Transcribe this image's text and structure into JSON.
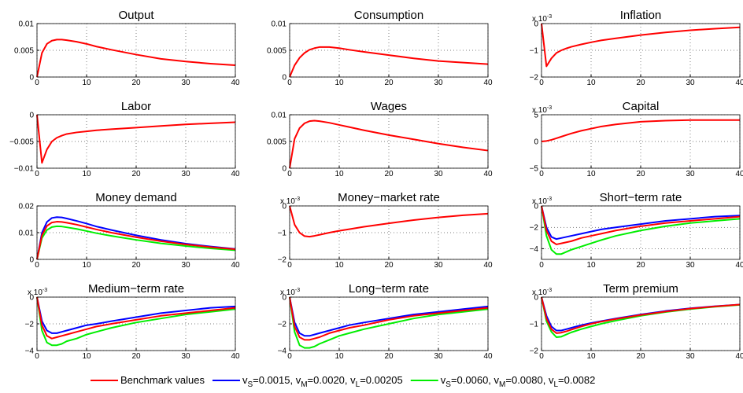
{
  "chart_data": [
    {
      "type": "line",
      "title": "Output",
      "x": [
        0,
        1,
        2,
        3,
        4,
        5,
        6,
        8,
        10,
        12,
        15,
        20,
        25,
        30,
        35,
        40
      ],
      "xlim": [
        0,
        40
      ],
      "xticks": [
        0,
        10,
        20,
        30,
        40
      ],
      "ylim": [
        0,
        0.01
      ],
      "yticks": [
        0,
        0.005,
        0.01
      ],
      "grid": true,
      "series": [
        {
          "color": "#ff0000",
          "values": [
            0,
            0.0045,
            0.0062,
            0.0068,
            0.007,
            0.007,
            0.0069,
            0.0066,
            0.0062,
            0.0057,
            0.0051,
            0.0042,
            0.0034,
            0.0029,
            0.0025,
            0.0022
          ]
        }
      ]
    },
    {
      "type": "line",
      "title": "Consumption",
      "x": [
        0,
        1,
        2,
        3,
        4,
        5,
        6,
        8,
        10,
        12,
        15,
        20,
        25,
        30,
        35,
        40
      ],
      "xlim": [
        0,
        40
      ],
      "xticks": [
        0,
        10,
        20,
        30,
        40
      ],
      "ylim": [
        0,
        0.01
      ],
      "yticks": [
        0,
        0.005,
        0.01
      ],
      "grid": true,
      "series": [
        {
          "color": "#ff0000",
          "values": [
            0,
            0.0022,
            0.0036,
            0.0045,
            0.0051,
            0.0054,
            0.0056,
            0.0056,
            0.0054,
            0.0051,
            0.0047,
            0.0041,
            0.0035,
            0.003,
            0.0027,
            0.0024
          ]
        }
      ]
    },
    {
      "type": "line",
      "title": "Inflation",
      "scale_label": {
        "base": "x 10",
        "exponent": "-3"
      },
      "x": [
        0,
        1,
        2,
        3,
        4,
        5,
        6,
        8,
        10,
        12,
        15,
        20,
        25,
        30,
        35,
        40
      ],
      "xlim": [
        0,
        40
      ],
      "xticks": [
        0,
        10,
        20,
        30,
        40
      ],
      "ylim": [
        -0.002,
        0
      ],
      "yticks": [
        {
          "value": -0.002,
          "label": "−2"
        },
        {
          "value": -0.001,
          "label": "−1"
        },
        0
      ],
      "grid": true,
      "series": [
        {
          "color": "#ff0000",
          "values": [
            0,
            -0.0016,
            -0.0013,
            -0.0011,
            -0.001,
            -0.00093,
            -0.00087,
            -0.00078,
            -0.0007,
            -0.00063,
            -0.00055,
            -0.00043,
            -0.00033,
            -0.00025,
            -0.00019,
            -0.00014
          ]
        }
      ]
    },
    {
      "type": "line",
      "title": "Labor",
      "x": [
        0,
        1,
        2,
        3,
        4,
        5,
        6,
        8,
        10,
        12,
        15,
        20,
        25,
        30,
        35,
        40
      ],
      "xlim": [
        0,
        40
      ],
      "xticks": [
        0,
        10,
        20,
        30,
        40
      ],
      "ylim": [
        -0.01,
        0
      ],
      "yticks": [
        {
          "value": -0.01,
          "label": "−0.01"
        },
        {
          "value": -0.005,
          "label": "−0.005"
        },
        0
      ],
      "grid": true,
      "series": [
        {
          "color": "#ff0000",
          "values": [
            0,
            -0.009,
            -0.0065,
            -0.005,
            -0.0043,
            -0.0039,
            -0.0036,
            -0.0033,
            -0.0031,
            -0.0029,
            -0.0027,
            -0.0024,
            -0.0021,
            -0.0018,
            -0.0016,
            -0.0014
          ]
        }
      ]
    },
    {
      "type": "line",
      "title": "Wages",
      "x": [
        0,
        1,
        2,
        3,
        4,
        5,
        6,
        8,
        10,
        12,
        15,
        20,
        25,
        30,
        35,
        40
      ],
      "xlim": [
        0,
        40
      ],
      "xticks": [
        0,
        10,
        20,
        30,
        40
      ],
      "ylim": [
        0,
        0.01
      ],
      "yticks": [
        0,
        0.005,
        0.01
      ],
      "grid": true,
      "series": [
        {
          "color": "#ff0000",
          "values": [
            0,
            0.0055,
            0.0075,
            0.0084,
            0.0088,
            0.0089,
            0.0088,
            0.0085,
            0.0081,
            0.0077,
            0.0071,
            0.0062,
            0.0054,
            0.0046,
            0.0039,
            0.0033
          ]
        }
      ]
    },
    {
      "type": "line",
      "title": "Capital",
      "scale_label": {
        "base": "x 10",
        "exponent": "-3"
      },
      "x": [
        0,
        1,
        2,
        3,
        4,
        5,
        6,
        8,
        10,
        12,
        15,
        20,
        25,
        30,
        35,
        40
      ],
      "xlim": [
        0,
        40
      ],
      "xticks": [
        0,
        10,
        20,
        30,
        40
      ],
      "ylim": [
        -0.005,
        0.005
      ],
      "yticks": [
        {
          "value": -0.005,
          "label": "−5"
        },
        0,
        {
          "value": 0.005,
          "label": "5"
        }
      ],
      "grid": true,
      "series": [
        {
          "color": "#ff0000",
          "values": [
            0,
            0.0001,
            0.0003,
            0.0006,
            0.0009,
            0.0012,
            0.0015,
            0.002,
            0.0024,
            0.0028,
            0.0032,
            0.0037,
            0.0039,
            0.004,
            0.004,
            0.004
          ]
        }
      ]
    },
    {
      "type": "line",
      "title": "Money demand",
      "x": [
        0,
        1,
        2,
        3,
        4,
        5,
        6,
        8,
        10,
        12,
        15,
        20,
        25,
        30,
        35,
        40
      ],
      "xlim": [
        0,
        40
      ],
      "xticks": [
        0,
        10,
        20,
        30,
        40
      ],
      "ylim": [
        0,
        0.02
      ],
      "yticks": [
        0,
        0.01,
        0.02
      ],
      "grid": true,
      "series": [
        {
          "color": "#0000ff",
          "values": [
            0,
            0.01,
            0.014,
            0.0155,
            0.0158,
            0.0157,
            0.0153,
            0.0144,
            0.0134,
            0.0123,
            0.011,
            0.009,
            0.0073,
            0.0059,
            0.0048,
            0.0039
          ]
        },
        {
          "color": "#00ee00",
          "values": [
            0,
            0.008,
            0.011,
            0.0121,
            0.0124,
            0.0123,
            0.012,
            0.0114,
            0.0106,
            0.0098,
            0.0088,
            0.0073,
            0.006,
            0.005,
            0.0041,
            0.0034
          ]
        },
        {
          "color": "#ff0000",
          "values": [
            0,
            0.009,
            0.0125,
            0.0138,
            0.0141,
            0.014,
            0.0137,
            0.013,
            0.0121,
            0.0112,
            0.01,
            0.0083,
            0.0068,
            0.0056,
            0.0046,
            0.0038
          ]
        }
      ]
    },
    {
      "type": "line",
      "title": "Money−market rate",
      "scale_label": {
        "base": "x 10",
        "exponent": "-3"
      },
      "x": [
        0,
        1,
        2,
        3,
        4,
        5,
        6,
        8,
        10,
        12,
        15,
        20,
        25,
        30,
        35,
        40
      ],
      "xlim": [
        0,
        40
      ],
      "xticks": [
        0,
        10,
        20,
        30,
        40
      ],
      "ylim": [
        -0.002,
        0
      ],
      "yticks": [
        {
          "value": -0.002,
          "label": "−2"
        },
        {
          "value": -0.001,
          "label": "−1"
        },
        0
      ],
      "grid": true,
      "series": [
        {
          "color": "#ff0000",
          "values": [
            0,
            -0.0007,
            -0.001,
            -0.00113,
            -0.00115,
            -0.00112,
            -0.00108,
            -0.001,
            -0.00093,
            -0.00087,
            -0.00078,
            -0.00065,
            -0.00053,
            -0.00043,
            -0.00035,
            -0.00029
          ]
        }
      ]
    },
    {
      "type": "line",
      "title": "Short−term rate",
      "scale_label": {
        "base": "x 10",
        "exponent": "-3"
      },
      "x": [
        0,
        1,
        2,
        3,
        4,
        5,
        6,
        8,
        10,
        12,
        15,
        20,
        25,
        30,
        35,
        40
      ],
      "xlim": [
        0,
        40
      ],
      "xticks": [
        0,
        10,
        20,
        30,
        40
      ],
      "ylim": [
        -0.005,
        0
      ],
      "yticks": [
        {
          "value": -0.004,
          "label": "−4"
        },
        {
          "value": -0.002,
          "label": "−2"
        },
        0
      ],
      "grid": true,
      "series": [
        {
          "color": "#0000ff",
          "values": [
            0,
            -0.002,
            -0.0029,
            -0.0031,
            -0.003,
            -0.0029,
            -0.0028,
            -0.0026,
            -0.0024,
            -0.0022,
            -0.002,
            -0.0017,
            -0.0014,
            -0.0012,
            -0.001,
            -0.0009
          ]
        },
        {
          "color": "#00ee00",
          "values": [
            0,
            -0.0028,
            -0.0041,
            -0.0045,
            -0.0045,
            -0.0043,
            -0.0041,
            -0.0038,
            -0.0035,
            -0.0032,
            -0.0028,
            -0.0023,
            -0.0019,
            -0.0016,
            -0.0014,
            -0.0012
          ]
        },
        {
          "color": "#ff0000",
          "values": [
            0,
            -0.0023,
            -0.0033,
            -0.0036,
            -0.0035,
            -0.0034,
            -0.0033,
            -0.003,
            -0.0028,
            -0.0026,
            -0.0023,
            -0.0019,
            -0.0016,
            -0.0014,
            -0.0012,
            -0.001
          ]
        }
      ]
    },
    {
      "type": "line",
      "title": "Medium−term rate",
      "scale_label": {
        "base": "x 10",
        "exponent": "-3"
      },
      "x": [
        0,
        1,
        2,
        3,
        4,
        5,
        6,
        8,
        10,
        12,
        15,
        20,
        25,
        30,
        35,
        40
      ],
      "xlim": [
        0,
        40
      ],
      "xticks": [
        0,
        10,
        20,
        30,
        40
      ],
      "ylim": [
        -0.004,
        0
      ],
      "yticks": [
        {
          "value": -0.004,
          "label": "−4"
        },
        {
          "value": -0.002,
          "label": "−2"
        },
        0
      ],
      "grid": true,
      "series": [
        {
          "color": "#0000ff",
          "values": [
            0,
            -0.0018,
            -0.0025,
            -0.0027,
            -0.0027,
            -0.0026,
            -0.0025,
            -0.0023,
            -0.0021,
            -0.002,
            -0.0018,
            -0.0015,
            -0.0012,
            -0.001,
            -0.0008,
            -0.0007
          ]
        },
        {
          "color": "#00ee00",
          "values": [
            0,
            -0.0025,
            -0.0034,
            -0.0036,
            -0.0036,
            -0.0035,
            -0.0033,
            -0.0031,
            -0.0028,
            -0.0026,
            -0.0023,
            -0.0019,
            -0.0016,
            -0.0013,
            -0.0011,
            -0.0009
          ]
        },
        {
          "color": "#ff0000",
          "values": [
            0,
            -0.0021,
            -0.0029,
            -0.0031,
            -0.003,
            -0.0029,
            -0.0028,
            -0.0026,
            -0.0024,
            -0.0022,
            -0.002,
            -0.0017,
            -0.0014,
            -0.0012,
            -0.001,
            -0.0008
          ]
        }
      ]
    },
    {
      "type": "line",
      "title": "Long−term rate",
      "scale_label": {
        "base": "x 10",
        "exponent": "-3"
      },
      "x": [
        0,
        1,
        2,
        3,
        4,
        5,
        6,
        8,
        10,
        12,
        15,
        20,
        25,
        30,
        35,
        40
      ],
      "xlim": [
        0,
        40
      ],
      "xticks": [
        0,
        10,
        20,
        30,
        40
      ],
      "ylim": [
        -0.004,
        0
      ],
      "yticks": [
        {
          "value": -0.004,
          "label": "−4"
        },
        {
          "value": -0.002,
          "label": "−2"
        },
        0
      ],
      "grid": true,
      "series": [
        {
          "color": "#0000ff",
          "values": [
            0,
            -0.0019,
            -0.0027,
            -0.0029,
            -0.0029,
            -0.0028,
            -0.0027,
            -0.0025,
            -0.0023,
            -0.0021,
            -0.0019,
            -0.0016,
            -0.0013,
            -0.0011,
            -0.0009,
            -0.0007
          ]
        },
        {
          "color": "#00ee00",
          "values": [
            0,
            -0.0026,
            -0.0036,
            -0.0038,
            -0.0038,
            -0.0037,
            -0.0035,
            -0.0032,
            -0.0029,
            -0.0027,
            -0.0024,
            -0.002,
            -0.0016,
            -0.0013,
            -0.0011,
            -0.0009
          ]
        },
        {
          "color": "#ff0000",
          "values": [
            0,
            -0.0022,
            -0.003,
            -0.0032,
            -0.0032,
            -0.0031,
            -0.003,
            -0.0027,
            -0.0025,
            -0.0023,
            -0.0021,
            -0.0017,
            -0.0014,
            -0.0012,
            -0.001,
            -0.0008
          ]
        }
      ]
    },
    {
      "type": "line",
      "title": "Term premium",
      "x": [
        0,
        1,
        2,
        3,
        4,
        5,
        6,
        8,
        10,
        12,
        15,
        20,
        25,
        30,
        35,
        40
      ],
      "scale_label": {
        "base": "x 10",
        "exponent": "-3"
      },
      "xlim": [
        0,
        40
      ],
      "xticks": [
        0,
        10,
        20,
        30,
        40
      ],
      "ylim": [
        -0.002,
        0
      ],
      "yticks": [
        {
          "value": -0.002,
          "label": "−2"
        },
        {
          "value": -0.001,
          "label": "−1"
        },
        0
      ],
      "grid": true,
      "series": [
        {
          "color": "#0000ff",
          "values": [
            0,
            -0.0007,
            -0.0011,
            -0.00125,
            -0.00125,
            -0.0012,
            -0.00115,
            -0.00105,
            -0.00097,
            -0.0009,
            -0.0008,
            -0.00065,
            -0.00052,
            -0.00042,
            -0.00034,
            -0.00028
          ]
        },
        {
          "color": "#00ee00",
          "values": [
            0,
            -0.0009,
            -0.0013,
            -0.0015,
            -0.00148,
            -0.0014,
            -0.00132,
            -0.0012,
            -0.0011,
            -0.001,
            -0.00088,
            -0.0007,
            -0.00056,
            -0.00045,
            -0.00036,
            -0.00029
          ]
        },
        {
          "color": "#ff0000",
          "values": [
            0,
            -0.0008,
            -0.0012,
            -0.00135,
            -0.00133,
            -0.00128,
            -0.00122,
            -0.0011,
            -0.001,
            -0.00092,
            -0.00082,
            -0.00067,
            -0.00054,
            -0.00043,
            -0.00035,
            -0.00028
          ]
        }
      ]
    }
  ],
  "legend": {
    "entries": [
      {
        "color": "#ff0000",
        "parts": [
          "Benchmark values"
        ]
      },
      {
        "color": "#0000ff",
        "parts": [
          "v",
          "S",
          "=0.0015, v",
          "M",
          "=0.0020, v",
          "L",
          "=0.00205"
        ]
      },
      {
        "color": "#00ee00",
        "parts": [
          "v",
          "S",
          "=0.0060, v",
          "M",
          "=0.0080, v",
          "L",
          "=0.0082"
        ]
      }
    ]
  }
}
